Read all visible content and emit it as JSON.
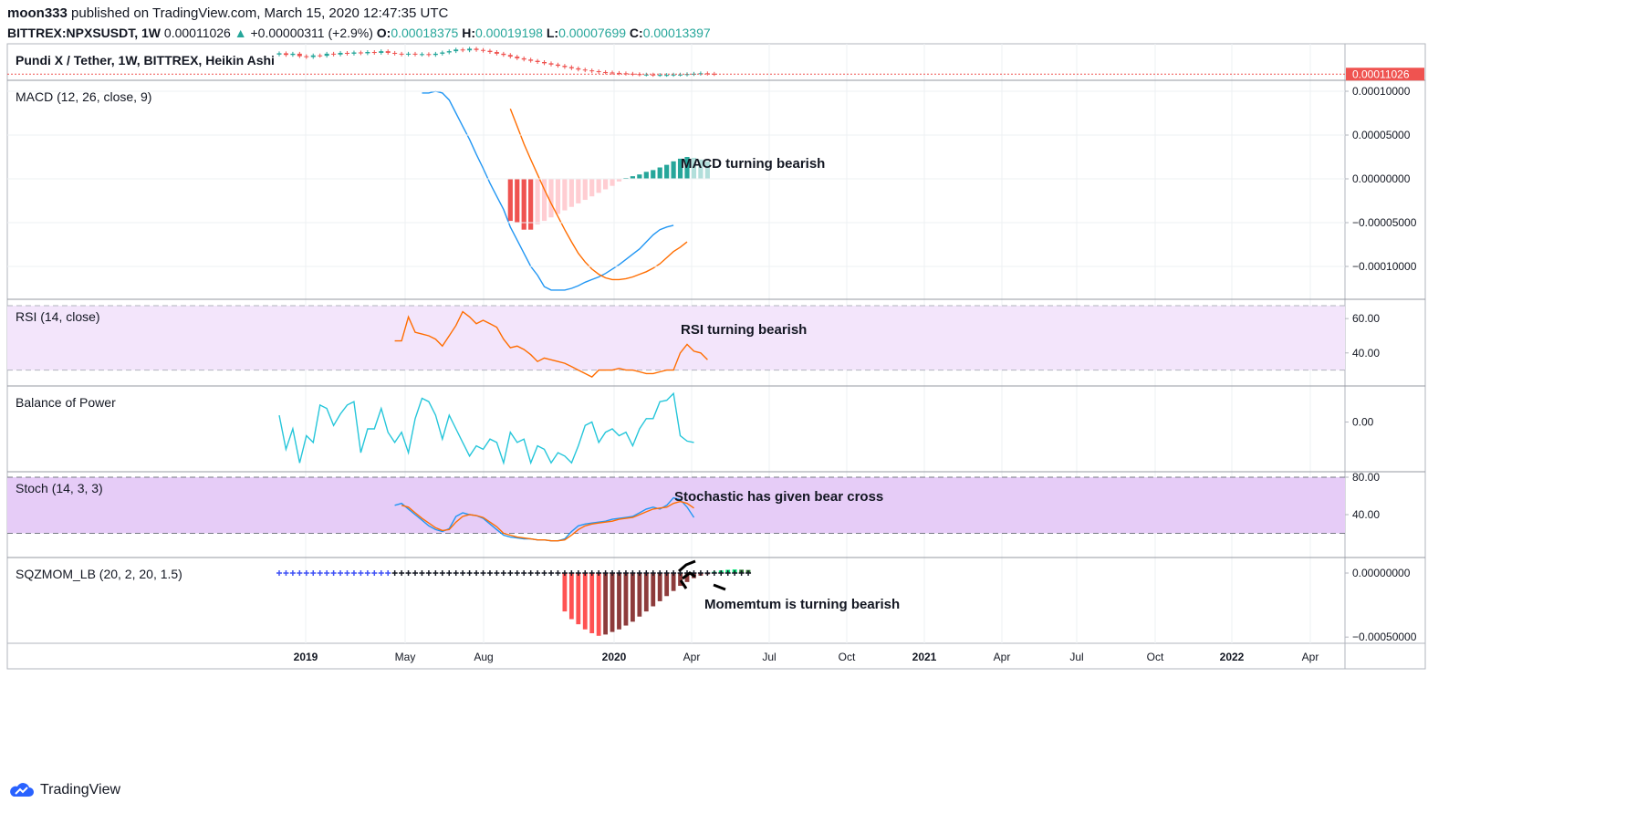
{
  "header": {
    "publisher": "moon333",
    "published_text": "published on TradingView.com, March 15, 2020 12:47:35 UTC",
    "symbol": "BITTREX:NPXSUSDT, 1W",
    "price": "0.00011026",
    "change_arrow": "▲",
    "change": "+0.00000311 (+2.9%)",
    "o_label": "O:",
    "o_value": "0.00018375",
    "h_label": "H:",
    "h_value": "0.00019198",
    "l_label": "L:",
    "l_value": "0.00007699",
    "c_label": "C:",
    "c_value": "0.00013397"
  },
  "footer": {
    "brand": "TradingView",
    "logo_icon": "tradingview-cloud-icon"
  },
  "colors": {
    "macd": "#2196f3",
    "signal": "#ff6d00",
    "rsi": "#ff6d00",
    "bop": "#26c6da",
    "stoch_k": "#2196f3",
    "stoch_d": "#ff6d00",
    "up": "#26a69a",
    "down": "#ef5350",
    "rsi_band": "#f3e5fb",
    "stoch_band": "#e6ccf7",
    "last_price_label_bg": "#ef5350"
  },
  "chart_data": [
    {
      "type": "candlestick",
      "title": "Pundi X / Tether, 1W, BITTREX, Heikin Ashi",
      "last_price_label": "0.00011026",
      "x_start": "2018-12-03",
      "x_step_days": 7,
      "candles": [
        {
          "o": 0.00058,
          "c": 0.00061
        },
        {
          "o": 0.00061,
          "c": 0.00057
        },
        {
          "o": 0.00057,
          "c": 0.0006
        },
        {
          "o": 0.0006,
          "c": 0.00054
        },
        {
          "o": 0.00054,
          "c": 0.00052
        },
        {
          "o": 0.00052,
          "c": 0.00056
        },
        {
          "o": 0.00056,
          "c": 0.00055
        },
        {
          "o": 0.00055,
          "c": 0.0006
        },
        {
          "o": 0.0006,
          "c": 0.00058
        },
        {
          "o": 0.00058,
          "c": 0.00062
        },
        {
          "o": 0.00062,
          "c": 0.0006
        },
        {
          "o": 0.0006,
          "c": 0.00063
        },
        {
          "o": 0.00063,
          "c": 0.00061
        },
        {
          "o": 0.00061,
          "c": 0.00064
        },
        {
          "o": 0.00064,
          "c": 0.00062
        },
        {
          "o": 0.00062,
          "c": 0.00066
        },
        {
          "o": 0.00066,
          "c": 0.00062
        },
        {
          "o": 0.00062,
          "c": 0.0006
        },
        {
          "o": 0.0006,
          "c": 0.00058
        },
        {
          "o": 0.00058,
          "c": 0.0006
        },
        {
          "o": 0.0006,
          "c": 0.00058
        },
        {
          "o": 0.00058,
          "c": 0.00059
        },
        {
          "o": 0.00059,
          "c": 0.00057
        },
        {
          "o": 0.00057,
          "c": 0.0006
        },
        {
          "o": 0.0006,
          "c": 0.00063
        },
        {
          "o": 0.00063,
          "c": 0.00066
        },
        {
          "o": 0.00066,
          "c": 0.0007
        },
        {
          "o": 0.0007,
          "c": 0.00068
        },
        {
          "o": 0.00068,
          "c": 0.00072
        },
        {
          "o": 0.00072,
          "c": 0.00069
        },
        {
          "o": 0.00069,
          "c": 0.00067
        },
        {
          "o": 0.00067,
          "c": 0.00064
        },
        {
          "o": 0.00064,
          "c": 0.0006
        },
        {
          "o": 0.0006,
          "c": 0.00057
        },
        {
          "o": 0.00057,
          "c": 0.00053
        },
        {
          "o": 0.00053,
          "c": 0.00049
        },
        {
          "o": 0.00049,
          "c": 0.00046
        },
        {
          "o": 0.00046,
          "c": 0.00043
        },
        {
          "o": 0.00043,
          "c": 0.0004
        },
        {
          "o": 0.0004,
          "c": 0.00037
        },
        {
          "o": 0.00037,
          "c": 0.00034
        },
        {
          "o": 0.00034,
          "c": 0.00031
        },
        {
          "o": 0.00031,
          "c": 0.00028
        },
        {
          "o": 0.00028,
          "c": 0.00025
        },
        {
          "o": 0.00025,
          "c": 0.00022
        },
        {
          "o": 0.00022,
          "c": 0.0002
        },
        {
          "o": 0.0002,
          "c": 0.00018
        },
        {
          "o": 0.00018,
          "c": 0.00016
        },
        {
          "o": 0.00016,
          "c": 0.00015
        },
        {
          "o": 0.00015,
          "c": 0.00014
        },
        {
          "o": 0.00014,
          "c": 0.00013
        },
        {
          "o": 0.00013,
          "c": 0.00012
        },
        {
          "o": 0.00012,
          "c": 0.00011
        },
        {
          "o": 0.00011,
          "c": 0.0001
        },
        {
          "o": 0.0001,
          "c": 0.0001
        },
        {
          "o": 0.0001,
          "c": 9e-05
        },
        {
          "o": 9e-05,
          "c": 9e-05
        },
        {
          "o": 9e-05,
          "c": 9e-05
        },
        {
          "o": 9e-05,
          "c": 0.0001
        },
        {
          "o": 0.0001,
          "c": 0.0001
        },
        {
          "o": 0.0001,
          "c": 0.00011
        },
        {
          "o": 0.00011,
          "c": 0.00012
        },
        {
          "o": 0.00012,
          "c": 0.00013
        },
        {
          "o": 0.00013,
          "c": 0.00012
        },
        {
          "o": 0.00012,
          "c": 0.00011
        }
      ]
    },
    {
      "type": "line",
      "title": "MACD (12, 26, close, 9)",
      "annotation": "MACD turning bearish",
      "y_ticks": [
        "0.00010000",
        "0.00005000",
        "0.00000000",
        "−0.00005000",
        "−0.00010000"
      ],
      "ylim": [
        -0.000125,
        0.0001
      ],
      "macd_start_index": 21,
      "macd": [
        9.8e-05,
        9.8e-05,
        0.0001,
        9.8e-05,
        9e-05,
        7.5e-05,
        6e-05,
        4.5e-05,
        2.8e-05,
        1.2e-05,
        -5e-06,
        -2e-05,
        -3.5e-05,
        -5.5e-05,
        -7e-05,
        -8.5e-05,
        -0.0001,
        -0.00011,
        -0.000123,
        -0.000127,
        -0.000127,
        -0.000127,
        -0.000125,
        -0.000122,
        -0.000118,
        -0.000115,
        -0.000112,
        -0.000108,
        -0.000103,
        -9.8e-05,
        -9.2e-05,
        -8.6e-05,
        -8e-05,
        -7.2e-05,
        -6.4e-05,
        -5.8e-05,
        -5.5e-05,
        -5.3e-05
      ],
      "signal_start_index": 34,
      "signal": [
        8e-05,
        6e-05,
        4e-05,
        2.2e-05,
        5e-06,
        -1.2e-05,
        -2.8e-05,
        -4.3e-05,
        -5.8e-05,
        -7.2e-05,
        -8.5e-05,
        -9.5e-05,
        -0.000103,
        -0.000109,
        -0.000113,
        -0.000115,
        -0.000115,
        -0.000114,
        -0.000112,
        -0.000109,
        -0.000106,
        -0.000102,
        -9.7e-05,
        -9e-05,
        -8.3e-05,
        -7.8e-05,
        -7.2e-05
      ],
      "hist_start_index": 34,
      "hist": [
        -4.8e-05,
        -5e-05,
        -5.8e-05,
        -5.8e-05,
        -5.2e-05,
        -4.8e-05,
        -4.4e-05,
        -4e-05,
        -3.6e-05,
        -3.2e-05,
        -2.8e-05,
        -2.4e-05,
        -2e-05,
        -1.6e-05,
        -1.2e-05,
        -8e-06,
        -3e-06,
        1e-06,
        3e-06,
        5e-06,
        8e-06,
        1e-05,
        1.3e-05,
        1.6e-05,
        2e-05,
        2.3e-05,
        2.5e-05,
        2.4e-05,
        2.2e-05,
        2e-05
      ]
    },
    {
      "type": "line",
      "title": "RSI (14, close)",
      "annotation": "RSI turning bearish",
      "y_ticks": [
        "60.00",
        "40.00"
      ],
      "ylim": [
        25,
        67
      ],
      "band": [
        30,
        70
      ],
      "start_index": 17,
      "values": [
        47,
        47,
        61,
        52,
        51,
        50,
        48,
        44,
        50,
        56,
        64,
        61,
        57,
        59,
        57,
        55,
        48,
        43,
        44,
        42,
        39,
        35,
        37,
        36,
        35,
        34,
        32,
        30,
        28,
        26,
        30,
        30,
        30,
        31,
        30,
        30,
        29,
        28,
        28,
        29,
        30,
        30,
        40,
        45,
        41,
        40,
        36
      ]
    },
    {
      "type": "line",
      "title": "Balance of Power",
      "y_ticks": [
        "0.00"
      ],
      "ylim": [
        -0.65,
        0.45
      ],
      "start_index": 0,
      "values": [
        0.1,
        -0.4,
        -0.1,
        -0.6,
        -0.2,
        -0.3,
        0.25,
        0.2,
        -0.05,
        0.12,
        0.25,
        0.3,
        -0.45,
        -0.1,
        -0.1,
        0.2,
        -0.15,
        -0.3,
        -0.15,
        -0.45,
        0.05,
        0.35,
        0.3,
        0.1,
        -0.25,
        0.1,
        -0.1,
        -0.3,
        -0.5,
        -0.35,
        -0.4,
        -0.25,
        -0.3,
        -0.6,
        -0.15,
        -0.3,
        -0.25,
        -0.6,
        -0.35,
        -0.4,
        -0.6,
        -0.45,
        -0.5,
        -0.6,
        -0.35,
        -0.05,
        0.0,
        -0.3,
        -0.15,
        -0.1,
        -0.2,
        -0.15,
        -0.35,
        -0.1,
        0.05,
        0.05,
        0.3,
        0.32,
        0.42,
        -0.2,
        -0.28,
        -0.3
      ]
    },
    {
      "type": "line",
      "title": "Stoch (14, 3, 3)",
      "annotation": "Stochastic has given bear cross",
      "y_ticks": [
        "80.00",
        "40.00"
      ],
      "ylim": [
        0,
        80
      ],
      "band": [
        20,
        80
      ],
      "start_index": 17,
      "k": [
        50,
        52,
        46,
        40,
        34,
        28,
        24,
        22,
        25,
        38,
        42,
        40,
        39,
        36,
        30,
        24,
        18,
        16,
        15,
        14,
        14,
        13,
        13,
        12,
        12,
        14,
        22,
        28,
        30,
        31,
        32,
        33,
        35,
        36,
        37,
        38,
        42,
        46,
        48,
        46,
        50,
        58,
        56,
        48,
        37
      ],
      "d": [
        null,
        50,
        48,
        42,
        36,
        31,
        26,
        23,
        24,
        32,
        38,
        40,
        39,
        37,
        32,
        27,
        20,
        18,
        16,
        15,
        14,
        13,
        13,
        12,
        12,
        13,
        18,
        24,
        28,
        30,
        31,
        32,
        33,
        35,
        36,
        37,
        40,
        43,
        46,
        47,
        48,
        52,
        54,
        52,
        47
      ]
    },
    {
      "type": "bar",
      "title": "SQZMOM_LB (20, 2, 20, 1.5)",
      "annotation": "Momemtum is turning bearish",
      "y_ticks": [
        "0.00000000",
        "−0.00050000"
      ],
      "ylim": [
        -0.00052,
        5e-05
      ],
      "start_index": 0,
      "values": [
        0,
        0,
        0,
        0,
        0,
        0,
        0,
        0,
        0,
        0,
        0,
        0,
        0,
        0,
        0,
        0,
        0,
        0,
        0,
        0,
        0,
        0,
        0,
        0,
        0,
        0,
        0,
        0,
        0,
        0,
        0,
        0,
        0,
        0,
        0,
        0,
        0,
        0,
        0,
        0,
        0,
        0,
        -0.0003,
        -0.00036,
        -0.0004,
        -0.00044,
        -0.00047,
        -0.00049,
        -0.00048,
        -0.00046,
        -0.00044,
        -0.00041,
        -0.00038,
        -0.00034,
        -0.0003,
        -0.00026,
        -0.00022,
        -0.00018,
        -0.00014,
        -0.0001,
        -7e-05,
        -4e-05,
        -2e-05,
        -1e-05,
        1e-05,
        2e-05,
        2.5e-05,
        2.8e-05,
        2.6e-05,
        2.4e-05
      ],
      "squeeze_on_until_index": 41
    },
    {
      "type": "axis",
      "x_ticks": [
        "2019",
        "May",
        "Aug",
        "2020",
        "Apr",
        "Jul",
        "Oct",
        "2021",
        "Apr",
        "Jul",
        "Oct",
        "2022",
        "Apr"
      ]
    }
  ]
}
